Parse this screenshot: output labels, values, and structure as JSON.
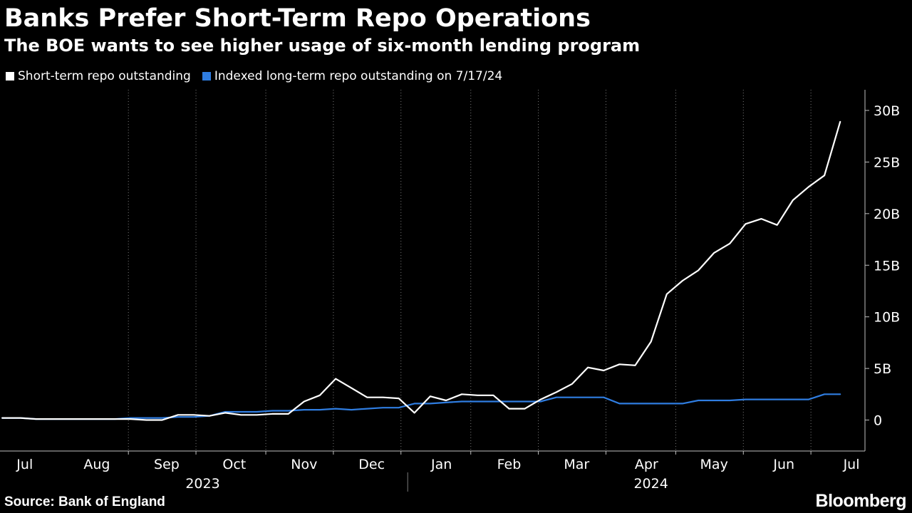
{
  "title": "Banks Prefer Short-Term Repo Operations",
  "subtitle": "The BOE wants to see higher usage of six-month lending program",
  "source": "Source: Bank of England",
  "brand": "Bloomberg",
  "colors": {
    "background": "#000000",
    "short_term": "#ffffff",
    "long_term": "#2f7de1",
    "grid": "#7a7a7a",
    "axis": "#bfbfbf"
  },
  "chart_data": {
    "type": "line",
    "legend_placement": "top-left",
    "grid": "vertical dotted",
    "y_axis_side": "right",
    "ylim": [
      -3,
      32
    ],
    "y_ticks": [
      0,
      5,
      10,
      15,
      20,
      25,
      30
    ],
    "y_tick_labels": [
      "0",
      "5B",
      "10B",
      "15B",
      "20B",
      "25B",
      "30B"
    ],
    "x_range": [
      "2023-07-04",
      "2024-07-22"
    ],
    "x_month_labels": [
      {
        "date": "2023-07-15",
        "label": "Jul"
      },
      {
        "date": "2023-08-16",
        "label": "Aug"
      },
      {
        "date": "2023-09-16",
        "label": "Sep"
      },
      {
        "date": "2023-10-16",
        "label": "Oct"
      },
      {
        "date": "2023-11-16",
        "label": "Nov"
      },
      {
        "date": "2023-12-16",
        "label": "Dec"
      },
      {
        "date": "2024-01-16",
        "label": "Jan"
      },
      {
        "date": "2024-02-15",
        "label": "Feb"
      },
      {
        "date": "2024-03-16",
        "label": "Mar"
      },
      {
        "date": "2024-04-16",
        "label": "Apr"
      },
      {
        "date": "2024-05-16",
        "label": "May"
      },
      {
        "date": "2024-06-16",
        "label": "Jun"
      },
      {
        "date": "2024-07-16",
        "label": "Jul"
      }
    ],
    "x_gridlines": [
      "2023-08-30",
      "2023-09-29",
      "2023-10-30",
      "2023-11-29",
      "2023-12-29",
      "2024-01-29",
      "2024-02-28",
      "2024-03-29",
      "2024-04-29",
      "2024-05-29",
      "2024-06-28"
    ],
    "x_year_labels": [
      {
        "date": "2023-10-02",
        "label": "2023"
      },
      {
        "date": "2024-04-18",
        "label": "2024"
      }
    ],
    "year_separator": "2024-01-01",
    "series": [
      {
        "name": "Short-term repo outstanding",
        "color": "#ffffff",
        "points": [
          [
            "2023-07-05",
            0.2
          ],
          [
            "2023-07-13",
            0.2
          ],
          [
            "2023-07-20",
            0.1
          ],
          [
            "2023-07-27",
            0.1
          ],
          [
            "2023-08-03",
            0.1
          ],
          [
            "2023-08-10",
            0.1
          ],
          [
            "2023-08-17",
            0.1
          ],
          [
            "2023-08-24",
            0.1
          ],
          [
            "2023-08-31",
            0.1
          ],
          [
            "2023-09-07",
            0.0
          ],
          [
            "2023-09-14",
            0.0
          ],
          [
            "2023-09-21",
            0.5
          ],
          [
            "2023-09-28",
            0.5
          ],
          [
            "2023-10-05",
            0.4
          ],
          [
            "2023-10-12",
            0.7
          ],
          [
            "2023-10-19",
            0.5
          ],
          [
            "2023-10-26",
            0.5
          ],
          [
            "2023-11-02",
            0.6
          ],
          [
            "2023-11-09",
            0.6
          ],
          [
            "2023-11-16",
            1.8
          ],
          [
            "2023-11-23",
            2.4
          ],
          [
            "2023-11-30",
            4.0
          ],
          [
            "2023-12-07",
            3.1
          ],
          [
            "2023-12-14",
            2.2
          ],
          [
            "2023-12-21",
            2.2
          ],
          [
            "2023-12-28",
            2.1
          ],
          [
            "2024-01-04",
            0.7
          ],
          [
            "2024-01-11",
            2.3
          ],
          [
            "2024-01-18",
            1.9
          ],
          [
            "2024-01-25",
            2.5
          ],
          [
            "2024-02-01",
            2.4
          ],
          [
            "2024-02-08",
            2.4
          ],
          [
            "2024-02-15",
            1.1
          ],
          [
            "2024-02-22",
            1.1
          ],
          [
            "2024-02-29",
            2.0
          ],
          [
            "2024-03-07",
            2.7
          ],
          [
            "2024-03-14",
            3.5
          ],
          [
            "2024-03-21",
            5.1
          ],
          [
            "2024-03-28",
            4.8
          ],
          [
            "2024-04-04",
            5.4
          ],
          [
            "2024-04-11",
            5.3
          ],
          [
            "2024-04-18",
            7.6
          ],
          [
            "2024-04-25",
            12.2
          ],
          [
            "2024-05-02",
            13.5
          ],
          [
            "2024-05-09",
            14.5
          ],
          [
            "2024-05-16",
            16.2
          ],
          [
            "2024-05-23",
            17.1
          ],
          [
            "2024-05-30",
            19.0
          ],
          [
            "2024-06-06",
            19.5
          ],
          [
            "2024-06-13",
            18.9
          ],
          [
            "2024-06-20",
            21.3
          ],
          [
            "2024-06-27",
            22.6
          ],
          [
            "2024-07-04",
            23.7
          ],
          [
            "2024-07-11",
            28.9
          ]
        ]
      },
      {
        "name": "Indexed long-term repo outstanding on 7/17/24",
        "color": "#2f7de1",
        "points": [
          [
            "2023-07-05",
            0.2
          ],
          [
            "2023-07-13",
            0.2
          ],
          [
            "2023-07-20",
            0.1
          ],
          [
            "2023-07-27",
            0.1
          ],
          [
            "2023-08-03",
            0.1
          ],
          [
            "2023-08-10",
            0.1
          ],
          [
            "2023-08-17",
            0.1
          ],
          [
            "2023-08-24",
            0.1
          ],
          [
            "2023-08-31",
            0.2
          ],
          [
            "2023-09-07",
            0.2
          ],
          [
            "2023-09-14",
            0.2
          ],
          [
            "2023-09-21",
            0.3
          ],
          [
            "2023-09-28",
            0.3
          ],
          [
            "2023-10-05",
            0.4
          ],
          [
            "2023-10-12",
            0.8
          ],
          [
            "2023-10-19",
            0.8
          ],
          [
            "2023-10-26",
            0.8
          ],
          [
            "2023-11-02",
            0.9
          ],
          [
            "2023-11-09",
            0.9
          ],
          [
            "2023-11-16",
            1.0
          ],
          [
            "2023-11-23",
            1.0
          ],
          [
            "2023-11-30",
            1.1
          ],
          [
            "2023-12-07",
            1.0
          ],
          [
            "2023-12-14",
            1.1
          ],
          [
            "2023-12-21",
            1.2
          ],
          [
            "2023-12-28",
            1.2
          ],
          [
            "2024-01-04",
            1.6
          ],
          [
            "2024-01-11",
            1.6
          ],
          [
            "2024-01-18",
            1.7
          ],
          [
            "2024-01-25",
            1.8
          ],
          [
            "2024-02-01",
            1.8
          ],
          [
            "2024-02-08",
            1.8
          ],
          [
            "2024-02-15",
            1.8
          ],
          [
            "2024-02-22",
            1.8
          ],
          [
            "2024-02-29",
            1.8
          ],
          [
            "2024-03-07",
            2.2
          ],
          [
            "2024-03-14",
            2.2
          ],
          [
            "2024-03-21",
            2.2
          ],
          [
            "2024-03-28",
            2.2
          ],
          [
            "2024-04-04",
            1.6
          ],
          [
            "2024-04-11",
            1.6
          ],
          [
            "2024-04-18",
            1.6
          ],
          [
            "2024-04-25",
            1.6
          ],
          [
            "2024-05-02",
            1.6
          ],
          [
            "2024-05-09",
            1.9
          ],
          [
            "2024-05-16",
            1.9
          ],
          [
            "2024-05-23",
            1.9
          ],
          [
            "2024-05-30",
            2.0
          ],
          [
            "2024-06-06",
            2.0
          ],
          [
            "2024-06-13",
            2.0
          ],
          [
            "2024-06-20",
            2.0
          ],
          [
            "2024-06-27",
            2.0
          ],
          [
            "2024-07-04",
            2.5
          ],
          [
            "2024-07-11",
            2.5
          ]
        ]
      }
    ]
  }
}
